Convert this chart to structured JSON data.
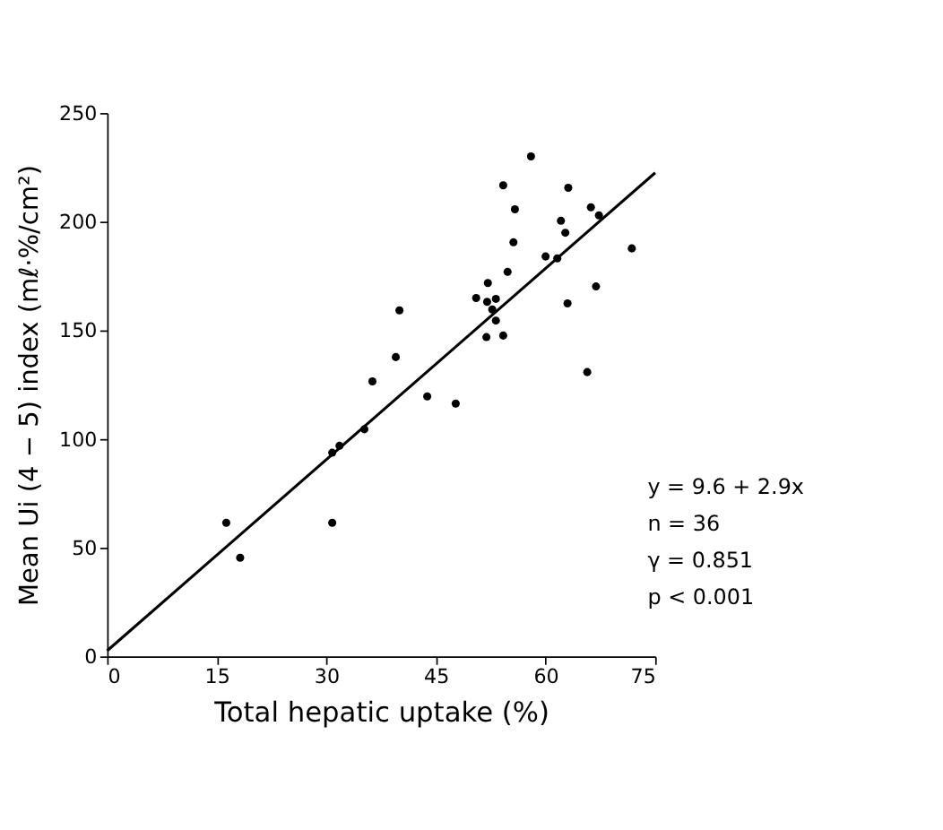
{
  "chart_data": {
    "type": "scatter",
    "xlabel": "Total hepatic uptake (%)",
    "ylabel": "Mean Ui (4 − 5) index (mℓ·%/cm²)",
    "xlim": [
      0,
      75
    ],
    "ylim": [
      0,
      250
    ],
    "xticks": [
      0,
      15,
      30,
      45,
      60,
      75
    ],
    "yticks": [
      0,
      50,
      100,
      150,
      200,
      250
    ],
    "grid": false,
    "series": [
      {
        "marker": "circle",
        "color": "#000000",
        "x": [
          16.3,
          18.2,
          30.8,
          30.8,
          31.8,
          35.2,
          36.3,
          39.5,
          40.0,
          43.8,
          47.7,
          50.5,
          51.9,
          52.0,
          52.1,
          52.7,
          53.2,
          53.2,
          54.2,
          54.2,
          54.8,
          55.6,
          55.8,
          58.0,
          60.0,
          61.6,
          62.1,
          62.7,
          63.0,
          63.1,
          65.7,
          66.2,
          66.9,
          67.3,
          71.8
        ],
        "values": [
          61.5,
          45.4,
          61.5,
          93.7,
          96.9,
          104.5,
          126.5,
          137.7,
          159.2,
          119.6,
          116.3,
          164.9,
          146.9,
          163.1,
          171.8,
          159.6,
          164.5,
          154.5,
          216.7,
          147.6,
          176.9,
          190.5,
          205.7,
          230,
          184.0,
          183.1,
          200.4,
          194.9,
          162.4,
          215.6,
          130.8,
          206.6,
          170.2,
          202.9,
          187.7
        ]
      },
      {
        "type": "line",
        "marker": "none",
        "color": "#000000",
        "line_style": "solid",
        "x": [
          0,
          75
        ],
        "values": [
          2.6,
          222.5
        ]
      }
    ],
    "annotations": [
      "y = 9.6 + 2.9x",
      "n = 36",
      "γ = 0.851",
      "p < 0.001"
    ]
  }
}
